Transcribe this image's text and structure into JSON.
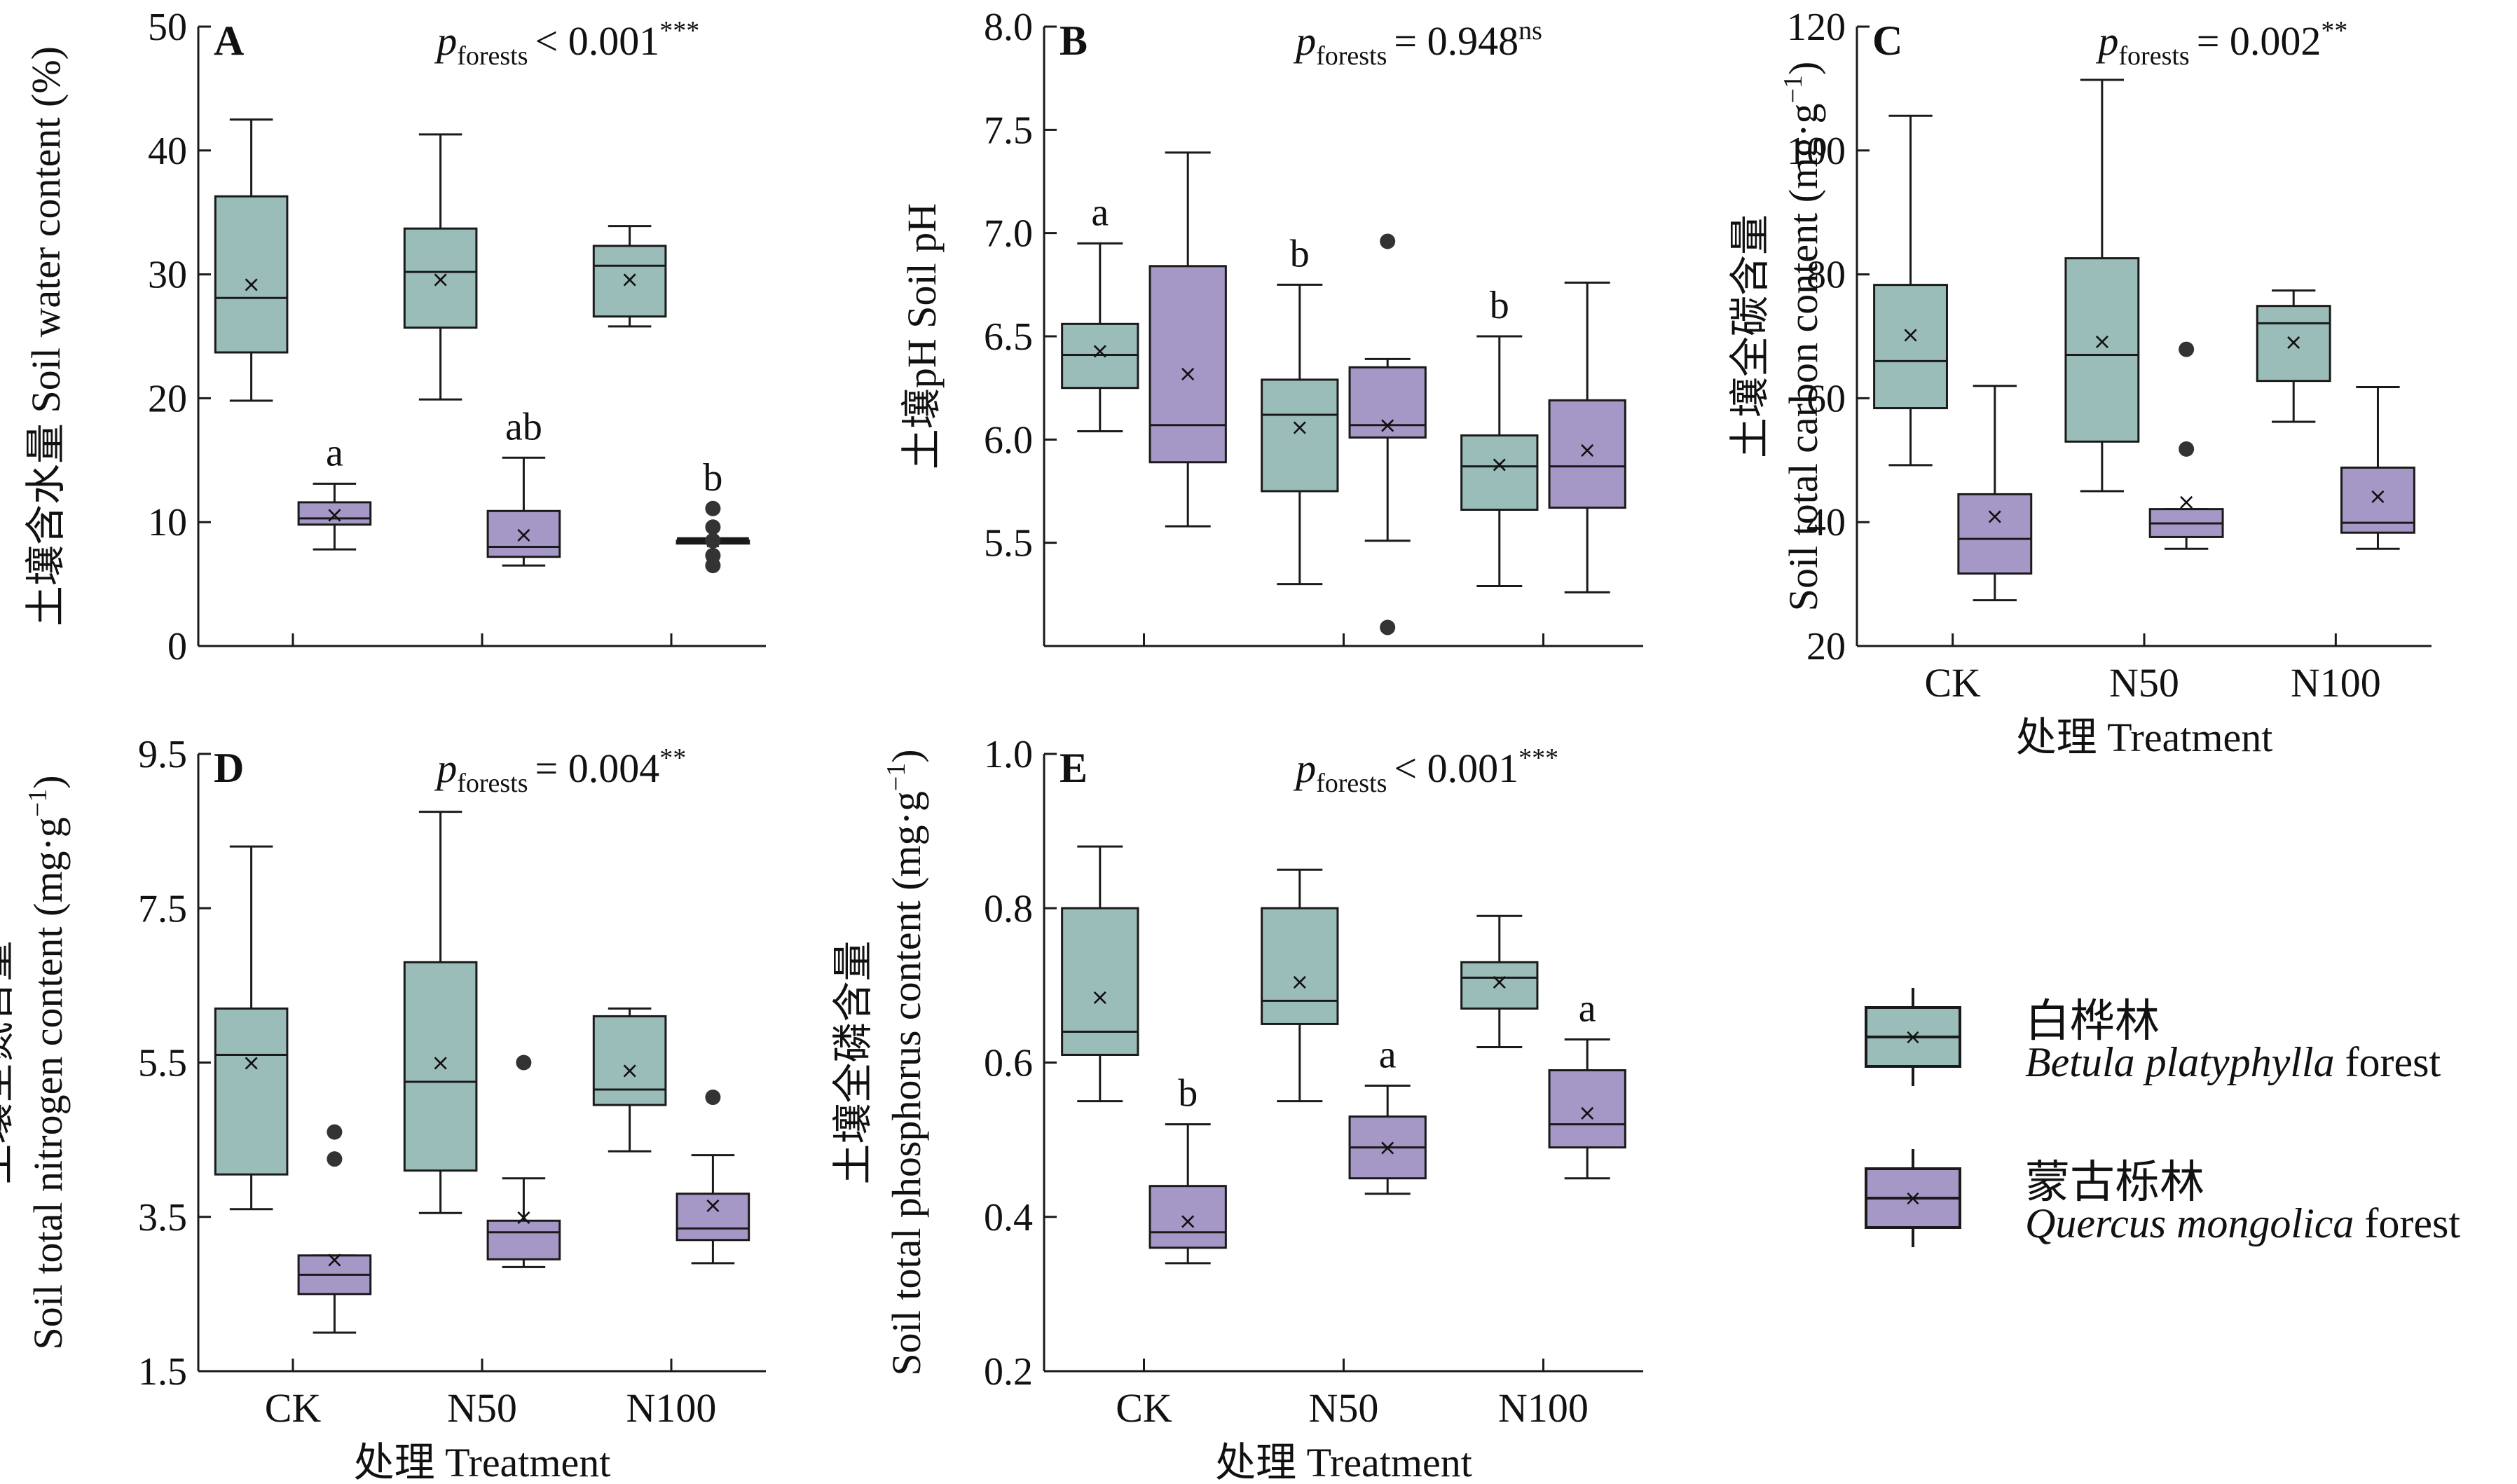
{
  "colors": {
    "betula": "#9bbdb9",
    "quercus": "#a698c6",
    "stroke": "#1a1a1a"
  },
  "legend": {
    "betula_cn": "白桦林",
    "betula_en_italic": "Betula platyphylla",
    "betula_en_suffix": " forest",
    "quercus_cn": "蒙古栎林",
    "quercus_en_italic": "Quercus mongolica",
    "quercus_en_suffix": " forest"
  },
  "chart_data": [
    {
      "panel": "A",
      "type": "box",
      "p_label": "forests",
      "p_text": "< 0.001",
      "p_sig": "***",
      "ylabel_cn": "土壤含水量",
      "ylabel_en": "Soil water content (%)",
      "ylim": [
        0,
        50
      ],
      "yticks": [
        "0",
        "10",
        "20",
        "30",
        "40",
        "50"
      ],
      "xlabel": "",
      "categories": [],
      "groups": [
        {
          "species": "betula",
          "min": 19.8,
          "q1": 23.7,
          "median": 28.1,
          "q3": 36.3,
          "max": 42.5,
          "mean": 29.2,
          "outliers": [],
          "letter": ""
        },
        {
          "species": "quercus",
          "min": 7.8,
          "q1": 9.8,
          "median": 10.3,
          "q3": 11.6,
          "max": 13.1,
          "mean": 10.6,
          "outliers": [],
          "letter": "a"
        },
        {
          "species": "betula",
          "min": 19.9,
          "q1": 25.7,
          "median": 30.2,
          "q3": 33.7,
          "max": 41.3,
          "mean": 29.6,
          "outliers": [],
          "letter": ""
        },
        {
          "species": "quercus",
          "min": 6.5,
          "q1": 7.2,
          "median": 8.0,
          "q3": 10.9,
          "max": 15.2,
          "mean": 9.0,
          "outliers": [],
          "letter": "ab"
        },
        {
          "species": "betula",
          "min": 25.8,
          "q1": 26.6,
          "median": 30.7,
          "q3": 32.3,
          "max": 33.9,
          "mean": 29.6,
          "outliers": [],
          "letter": ""
        },
        {
          "species": "quercus",
          "min": 8.5,
          "q1": 8.5,
          "median": 8.5,
          "q3": 8.5,
          "max": 8.5,
          "mean": 8.5,
          "outliers": [
            6.5,
            7.3,
            8.5,
            9.6,
            11.1
          ],
          "letter": "b"
        }
      ]
    },
    {
      "panel": "B",
      "type": "box",
      "p_label": "forests",
      "p_text": "= 0.948",
      "p_sig": "ns",
      "ylabel_cn": "土壤pH",
      "ylabel_en": "Soil pH",
      "ylim": [
        5.0,
        8.0
      ],
      "yticks": [
        "5.5",
        "6.0",
        "6.5",
        "7.0",
        "7.5",
        "8.0"
      ],
      "xlabel": "",
      "categories": [],
      "groups": [
        {
          "species": "betula",
          "min": 6.04,
          "q1": 6.25,
          "median": 6.41,
          "q3": 6.56,
          "max": 6.95,
          "mean": 6.43,
          "outliers": [],
          "letter": "a"
        },
        {
          "species": "quercus",
          "min": 5.58,
          "q1": 5.89,
          "median": 6.07,
          "q3": 6.84,
          "max": 7.39,
          "mean": 6.32,
          "outliers": [],
          "letter": ""
        },
        {
          "species": "betula",
          "min": 5.3,
          "q1": 5.75,
          "median": 6.12,
          "q3": 6.29,
          "max": 6.75,
          "mean": 6.06,
          "outliers": [],
          "letter": "b"
        },
        {
          "species": "quercus",
          "min": 5.51,
          "q1": 6.01,
          "median": 6.07,
          "q3": 6.35,
          "max": 6.39,
          "mean": 6.07,
          "outliers": [
            6.96,
            5.09
          ],
          "letter": ""
        },
        {
          "species": "betula",
          "min": 5.29,
          "q1": 5.66,
          "median": 5.87,
          "q3": 6.02,
          "max": 6.5,
          "mean": 5.88,
          "outliers": [],
          "letter": "b"
        },
        {
          "species": "quercus",
          "min": 5.26,
          "q1": 5.67,
          "median": 5.87,
          "q3": 6.19,
          "max": 6.76,
          "mean": 5.95,
          "outliers": [],
          "letter": ""
        }
      ]
    },
    {
      "panel": "C",
      "type": "box",
      "p_label": "forests",
      "p_text": "= 0.002",
      "p_sig": "**",
      "ylabel_cn": "土壤全碳含量",
      "ylabel_en": "Soil total carbon content (mg·g",
      "ylabel_sup": "−1",
      "ylabel_end": ")",
      "ylim": [
        20,
        120
      ],
      "yticks": [
        "20",
        "40",
        "60",
        "80",
        "100",
        "120"
      ],
      "xlabel_cn": "处理",
      "xlabel_en": "Treatment",
      "categories": [
        "CK",
        "N50",
        "N100"
      ],
      "groups": [
        {
          "species": "betula",
          "min": 49.2,
          "q1": 58.4,
          "median": 66.0,
          "q3": 78.3,
          "max": 105.6,
          "mean": 70.3,
          "outliers": [],
          "letter": ""
        },
        {
          "species": "quercus",
          "min": 27.4,
          "q1": 31.7,
          "median": 37.3,
          "q3": 44.5,
          "max": 62.0,
          "mean": 41.0,
          "outliers": [],
          "letter": ""
        },
        {
          "species": "betula",
          "min": 45.0,
          "q1": 53.0,
          "median": 67.0,
          "q3": 82.6,
          "max": 111.4,
          "mean": 69.2,
          "outliers": [],
          "letter": ""
        },
        {
          "species": "quercus",
          "min": 35.7,
          "q1": 37.6,
          "median": 39.8,
          "q3": 42.1,
          "max": 42.1,
          "mean": 43.3,
          "outliers": [
            67.9,
            51.8
          ],
          "letter": ""
        },
        {
          "species": "betula",
          "min": 56.2,
          "q1": 62.8,
          "median": 72.1,
          "q3": 74.9,
          "max": 77.4,
          "mean": 69.1,
          "outliers": [],
          "letter": ""
        },
        {
          "species": "quercus",
          "min": 35.7,
          "q1": 38.3,
          "median": 39.9,
          "q3": 48.8,
          "max": 61.8,
          "mean": 44.2,
          "outliers": [],
          "letter": ""
        }
      ]
    },
    {
      "panel": "D",
      "type": "box",
      "p_label": "forests",
      "p_text": "= 0.004",
      "p_sig": "**",
      "ylabel_cn": "土壤全氮含量",
      "ylabel_en": "Soil total nitrogen content (mg·g",
      "ylabel_sup": "−1",
      "ylabel_end": ")",
      "ylim": [
        1.5,
        9.5
      ],
      "yticks": [
        "1.5",
        "3.5",
        "5.5",
        "7.5",
        "9.5"
      ],
      "xlabel_cn": "处理",
      "xlabel_en": "Treatment",
      "categories": [
        "CK",
        "N50",
        "N100"
      ],
      "groups": [
        {
          "species": "betula",
          "min": 3.6,
          "q1": 4.05,
          "median": 5.6,
          "q3": 6.2,
          "max": 8.3,
          "mean": 5.5,
          "outliers": [],
          "letter": ""
        },
        {
          "species": "quercus",
          "min": 2.0,
          "q1": 2.5,
          "median": 2.75,
          "q3": 3.0,
          "max": 3.0,
          "mean": 2.95,
          "outliers": [
            4.6,
            4.25
          ],
          "letter": ""
        },
        {
          "species": "betula",
          "min": 3.55,
          "q1": 4.1,
          "median": 5.25,
          "q3": 6.8,
          "max": 8.75,
          "mean": 5.5,
          "outliers": [],
          "letter": ""
        },
        {
          "species": "quercus",
          "min": 2.85,
          "q1": 2.95,
          "median": 3.3,
          "q3": 3.45,
          "max": 4.0,
          "mean": 3.5,
          "outliers": [
            5.5
          ],
          "letter": ""
        },
        {
          "species": "betula",
          "min": 4.35,
          "q1": 4.95,
          "median": 5.15,
          "q3": 6.1,
          "max": 6.2,
          "mean": 5.4,
          "outliers": [],
          "letter": ""
        },
        {
          "species": "quercus",
          "min": 2.9,
          "q1": 3.2,
          "median": 3.35,
          "q3": 3.8,
          "max": 4.3,
          "mean": 3.65,
          "outliers": [
            5.05
          ],
          "letter": ""
        }
      ]
    },
    {
      "panel": "E",
      "type": "box",
      "p_label": "forests",
      "p_text": "< 0.001",
      "p_sig": "***",
      "ylabel_cn": "土壤全磷含量",
      "ylabel_en": "Soil total phosphorus content (mg·g",
      "ylabel_sup": "−1",
      "ylabel_end": ")",
      "ylim": [
        0.2,
        1.0
      ],
      "yticks": [
        "0.2",
        "0.4",
        "0.6",
        "0.8",
        "1.0"
      ],
      "xlabel_cn": "处理",
      "xlabel_en": "Treatment",
      "categories": [
        "CK",
        "N50",
        "N100"
      ],
      "groups": [
        {
          "species": "betula",
          "min": 0.55,
          "q1": 0.61,
          "median": 0.64,
          "q3": 0.8,
          "max": 0.88,
          "mean": 0.685,
          "outliers": [],
          "letter": ""
        },
        {
          "species": "quercus",
          "min": 0.34,
          "q1": 0.36,
          "median": 0.38,
          "q3": 0.44,
          "max": 0.52,
          "mean": 0.395,
          "outliers": [],
          "letter": "b"
        },
        {
          "species": "betula",
          "min": 0.55,
          "q1": 0.65,
          "median": 0.68,
          "q3": 0.8,
          "max": 0.85,
          "mean": 0.705,
          "outliers": [],
          "letter": ""
        },
        {
          "species": "quercus",
          "min": 0.43,
          "q1": 0.45,
          "median": 0.49,
          "q3": 0.53,
          "max": 0.57,
          "mean": 0.49,
          "outliers": [],
          "letter": "a"
        },
        {
          "species": "betula",
          "min": 0.62,
          "q1": 0.67,
          "median": 0.71,
          "q3": 0.73,
          "max": 0.79,
          "mean": 0.705,
          "outliers": [],
          "letter": ""
        },
        {
          "species": "quercus",
          "min": 0.45,
          "q1": 0.49,
          "median": 0.52,
          "q3": 0.59,
          "max": 0.63,
          "mean": 0.535,
          "outliers": [],
          "letter": "a"
        }
      ]
    }
  ]
}
